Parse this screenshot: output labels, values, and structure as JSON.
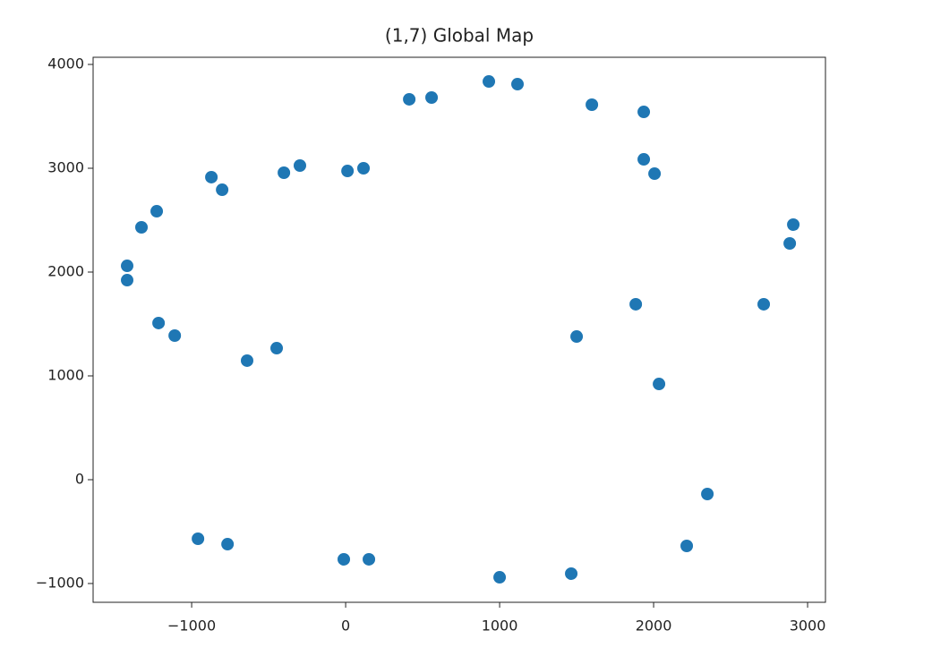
{
  "chart_data": {
    "type": "scatter",
    "title": "(1,7) Global Map",
    "x": [
      930,
      1116,
      413,
      558,
      1599,
      1936,
      1936,
      2006,
      -872,
      -802,
      -401,
      -297,
      12,
      116,
      -1227,
      -1326,
      -1419,
      -1419,
      2907,
      2884,
      2715,
      1884,
      1500,
      2035,
      -1215,
      -1110,
      -640,
      -448,
      2349,
      2215,
      -959,
      -767,
      -12,
      151,
      1000,
      1465
    ],
    "values": [
      3836,
      3810,
      3664,
      3681,
      3612,
      3543,
      3086,
      2948,
      2914,
      2793,
      2957,
      3026,
      2974,
      3000,
      2586,
      2431,
      2060,
      1922,
      2457,
      2276,
      1690,
      1690,
      1379,
      922,
      1509,
      1388,
      1147,
      1267,
      -138,
      -638,
      -569,
      -621,
      -767,
      -767,
      -940,
      -905
    ],
    "color": "#1f77b4",
    "xlim": [
      -1640,
      3116
    ],
    "ylim": [
      -1181,
      4069
    ],
    "xticks": [
      {
        "value": -1000,
        "label": "−1000"
      },
      0,
      1000,
      2000,
      3000
    ],
    "yticks": [
      {
        "value": -1000,
        "label": "−1000"
      },
      0,
      1000,
      2000,
      3000,
      4000
    ],
    "grid": false
  }
}
